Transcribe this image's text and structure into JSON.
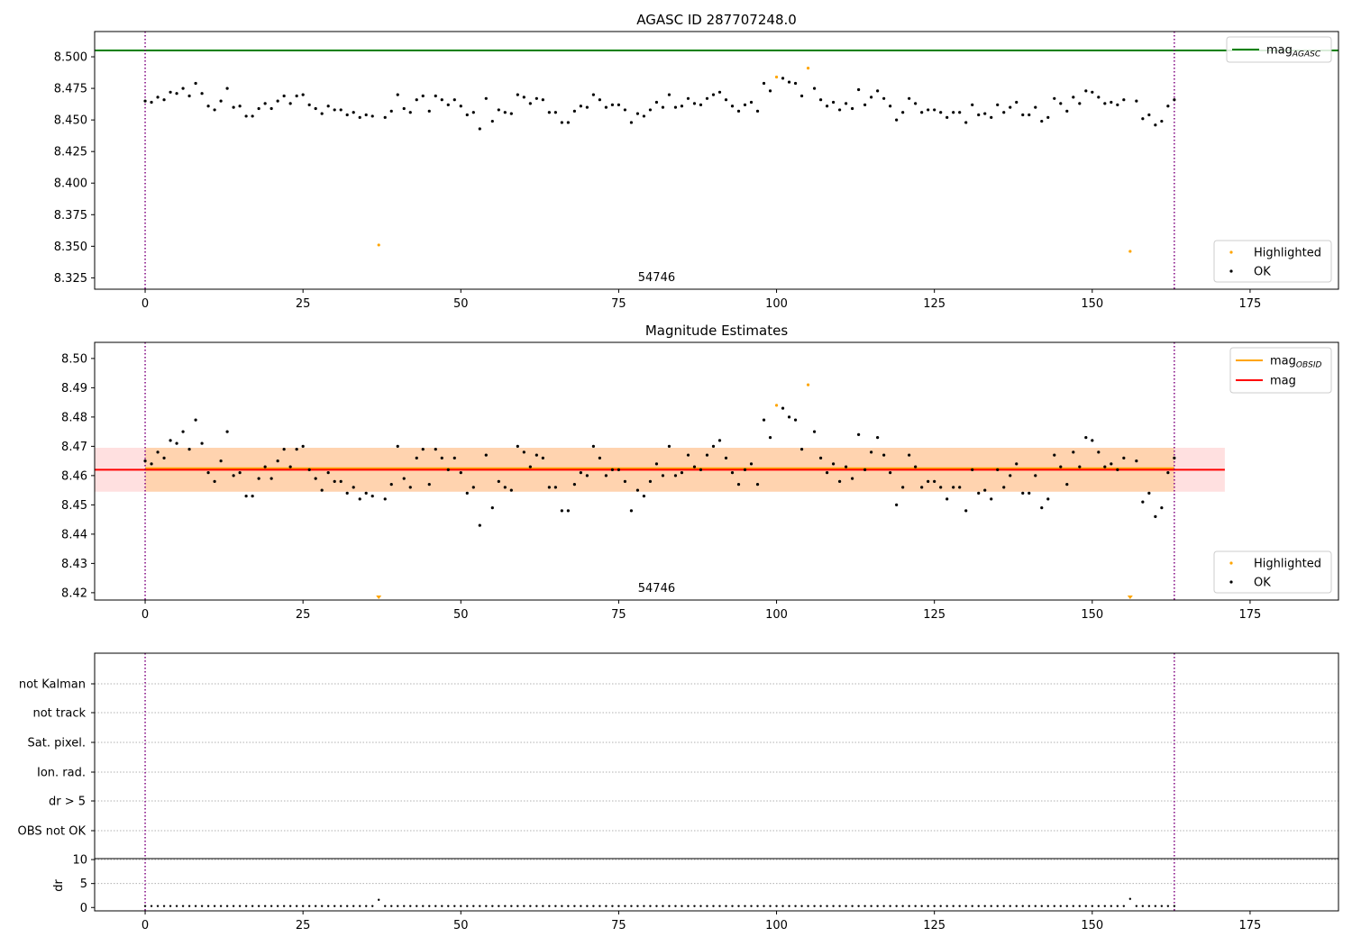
{
  "chart_data": [
    {
      "type": "scatter",
      "title": "AGASC ID 287707248.0",
      "annotation": "54746",
      "x_ticks": [
        0,
        25,
        50,
        75,
        100,
        125,
        150,
        175
      ],
      "y_ticks": [
        8.325,
        8.35,
        8.375,
        8.4,
        8.425,
        8.45,
        8.475,
        8.5
      ],
      "y_tick_labels": [
        "8.325",
        "8.350",
        "8.375",
        "8.400",
        "8.425",
        "8.450",
        "8.475",
        "8.500"
      ],
      "xlim": [
        -8,
        189
      ],
      "ylim": [
        8.316,
        8.52
      ],
      "mag_agasc": 8.505,
      "vlines": [
        0,
        163
      ],
      "legend_line": {
        "name": "mag",
        "subscript": "AGASC",
        "color": "#008000",
        "placement": "top-right"
      },
      "legend_points": [
        {
          "name": "Highlighted",
          "color": "#ffa500"
        },
        {
          "name": "OK",
          "color": "#000000"
        }
      ],
      "legend_points_placement": "lower-right",
      "highlighted": [
        {
          "x": 37,
          "y": 8.351
        },
        {
          "x": 100,
          "y": 8.484
        },
        {
          "x": 105,
          "y": 8.491
        },
        {
          "x": 156,
          "y": 8.346
        }
      ],
      "ok": [
        [
          0,
          8.465
        ],
        [
          1,
          8.464
        ],
        [
          2,
          8.468
        ],
        [
          3,
          8.466
        ],
        [
          4,
          8.472
        ],
        [
          5,
          8.471
        ],
        [
          6,
          8.475
        ],
        [
          7,
          8.469
        ],
        [
          8,
          8.479
        ],
        [
          9,
          8.471
        ],
        [
          10,
          8.461
        ],
        [
          11,
          8.458
        ],
        [
          12,
          8.465
        ],
        [
          13,
          8.475
        ],
        [
          14,
          8.46
        ],
        [
          15,
          8.461
        ],
        [
          16,
          8.453
        ],
        [
          17,
          8.453
        ],
        [
          18,
          8.459
        ],
        [
          19,
          8.463
        ],
        [
          20,
          8.459
        ],
        [
          21,
          8.465
        ],
        [
          22,
          8.469
        ],
        [
          23,
          8.463
        ],
        [
          24,
          8.469
        ],
        [
          25,
          8.47
        ],
        [
          26,
          8.462
        ],
        [
          27,
          8.459
        ],
        [
          28,
          8.455
        ],
        [
          29,
          8.461
        ],
        [
          30,
          8.458
        ],
        [
          31,
          8.458
        ],
        [
          32,
          8.454
        ],
        [
          33,
          8.456
        ],
        [
          34,
          8.452
        ],
        [
          35,
          8.454
        ],
        [
          36,
          8.453
        ],
        [
          38,
          8.452
        ],
        [
          39,
          8.457
        ],
        [
          40,
          8.47
        ],
        [
          41,
          8.459
        ],
        [
          42,
          8.456
        ],
        [
          43,
          8.466
        ],
        [
          44,
          8.469
        ],
        [
          45,
          8.457
        ],
        [
          46,
          8.469
        ],
        [
          47,
          8.466
        ],
        [
          48,
          8.462
        ],
        [
          49,
          8.466
        ],
        [
          50,
          8.461
        ],
        [
          51,
          8.454
        ],
        [
          52,
          8.456
        ],
        [
          53,
          8.443
        ],
        [
          54,
          8.467
        ],
        [
          55,
          8.449
        ],
        [
          56,
          8.458
        ],
        [
          57,
          8.456
        ],
        [
          58,
          8.455
        ],
        [
          59,
          8.47
        ],
        [
          60,
          8.468
        ],
        [
          61,
          8.463
        ],
        [
          62,
          8.467
        ],
        [
          63,
          8.466
        ],
        [
          64,
          8.456
        ],
        [
          65,
          8.456
        ],
        [
          66,
          8.448
        ],
        [
          67,
          8.448
        ],
        [
          68,
          8.457
        ],
        [
          69,
          8.461
        ],
        [
          70,
          8.46
        ],
        [
          71,
          8.47
        ],
        [
          72,
          8.466
        ],
        [
          73,
          8.46
        ],
        [
          74,
          8.462
        ],
        [
          75,
          8.462
        ],
        [
          76,
          8.458
        ],
        [
          77,
          8.448
        ],
        [
          78,
          8.455
        ],
        [
          79,
          8.453
        ],
        [
          80,
          8.458
        ],
        [
          81,
          8.464
        ],
        [
          82,
          8.46
        ],
        [
          83,
          8.47
        ],
        [
          84,
          8.46
        ],
        [
          85,
          8.461
        ],
        [
          86,
          8.467
        ],
        [
          87,
          8.463
        ],
        [
          88,
          8.462
        ],
        [
          89,
          8.467
        ],
        [
          90,
          8.47
        ],
        [
          91,
          8.472
        ],
        [
          92,
          8.466
        ],
        [
          93,
          8.461
        ],
        [
          94,
          8.457
        ],
        [
          95,
          8.462
        ],
        [
          96,
          8.464
        ],
        [
          97,
          8.457
        ],
        [
          98,
          8.479
        ],
        [
          99,
          8.473
        ],
        [
          101,
          8.483
        ],
        [
          102,
          8.48
        ],
        [
          103,
          8.479
        ],
        [
          104,
          8.469
        ],
        [
          106,
          8.475
        ],
        [
          107,
          8.466
        ],
        [
          108,
          8.461
        ],
        [
          109,
          8.464
        ],
        [
          110,
          8.458
        ],
        [
          111,
          8.463
        ],
        [
          112,
          8.459
        ],
        [
          113,
          8.474
        ],
        [
          114,
          8.462
        ],
        [
          115,
          8.468
        ],
        [
          116,
          8.473
        ],
        [
          117,
          8.467
        ],
        [
          118,
          8.461
        ],
        [
          119,
          8.45
        ],
        [
          120,
          8.456
        ],
        [
          121,
          8.467
        ],
        [
          122,
          8.463
        ],
        [
          123,
          8.456
        ],
        [
          124,
          8.458
        ],
        [
          125,
          8.458
        ],
        [
          126,
          8.456
        ],
        [
          127,
          8.452
        ],
        [
          128,
          8.456
        ],
        [
          129,
          8.456
        ],
        [
          130,
          8.448
        ],
        [
          131,
          8.462
        ],
        [
          132,
          8.454
        ],
        [
          133,
          8.455
        ],
        [
          134,
          8.452
        ],
        [
          135,
          8.462
        ],
        [
          136,
          8.456
        ],
        [
          137,
          8.46
        ],
        [
          138,
          8.464
        ],
        [
          139,
          8.454
        ],
        [
          140,
          8.454
        ],
        [
          141,
          8.46
        ],
        [
          142,
          8.449
        ],
        [
          143,
          8.452
        ],
        [
          144,
          8.467
        ],
        [
          145,
          8.463
        ],
        [
          146,
          8.457
        ],
        [
          147,
          8.468
        ],
        [
          148,
          8.463
        ],
        [
          149,
          8.473
        ],
        [
          150,
          8.472
        ],
        [
          151,
          8.468
        ],
        [
          152,
          8.463
        ],
        [
          153,
          8.464
        ],
        [
          154,
          8.462
        ],
        [
          155,
          8.466
        ],
        [
          157,
          8.465
        ],
        [
          158,
          8.451
        ],
        [
          159,
          8.454
        ],
        [
          160,
          8.446
        ],
        [
          161,
          8.449
        ],
        [
          162,
          8.461
        ],
        [
          163,
          8.466
        ]
      ]
    },
    {
      "type": "scatter",
      "title": "Magnitude Estimates",
      "annotation": "54746",
      "x_ticks": [
        0,
        25,
        50,
        75,
        100,
        125,
        150,
        175
      ],
      "y_ticks": [
        8.42,
        8.43,
        8.44,
        8.45,
        8.46,
        8.47,
        8.48,
        8.49,
        8.5
      ],
      "y_tick_labels": [
        "8.42",
        "8.43",
        "8.44",
        "8.45",
        "8.46",
        "8.47",
        "8.48",
        "8.49",
        "8.50"
      ],
      "xlim": [
        -8,
        189
      ],
      "ylim": [
        8.4175,
        8.5055
      ],
      "mag": 8.462,
      "mag_obsid": 8.4625,
      "band_mag": [
        8.4545,
        8.4695
      ],
      "band_mag_obsid": [
        8.4545,
        8.4695
      ],
      "band_mag_x": [
        -8,
        171
      ],
      "band_mag_obsid_x": [
        0,
        163
      ],
      "vlines": [
        0,
        163
      ],
      "legend_lines": [
        {
          "name": "mag",
          "subscript": "OBSID",
          "color": "#ffa500"
        },
        {
          "name": "mag",
          "subscript": "",
          "color": "#ff0000"
        }
      ],
      "legend_lines_placement": "top-right",
      "legend_points": [
        {
          "name": "Highlighted",
          "color": "#ffa500"
        },
        {
          "name": "OK",
          "color": "#000000"
        }
      ],
      "legend_points_placement": "lower-right",
      "highlighted": [
        {
          "x": 100,
          "y": 8.484
        },
        {
          "x": 105,
          "y": 8.491
        }
      ],
      "below_range": [
        37,
        156
      ]
    },
    {
      "type": "scatter",
      "title": "",
      "category_labels": [
        "not Kalman",
        "not track",
        "Sat. pixel.",
        "Ion. rad.",
        "dr > 5",
        "OBS not OK"
      ],
      "vlines": [
        0,
        163
      ],
      "xlim": [
        -8,
        189
      ]
    },
    {
      "type": "scatter",
      "ylabel": "dr",
      "x_ticks": [
        0,
        25,
        50,
        75,
        100,
        125,
        150,
        175
      ],
      "y_ticks": [
        0,
        5,
        10
      ],
      "y_tick_labels": [
        "0",
        "5",
        "10"
      ],
      "xlim": [
        -8,
        189
      ],
      "ylim": [
        -0.7,
        10.2
      ],
      "vlines": [
        0,
        163
      ],
      "dr_baseline": 0.3,
      "dr_peaks": [
        {
          "x": 37,
          "y": 1.6
        },
        {
          "x": 156,
          "y": 1.8
        }
      ]
    }
  ]
}
